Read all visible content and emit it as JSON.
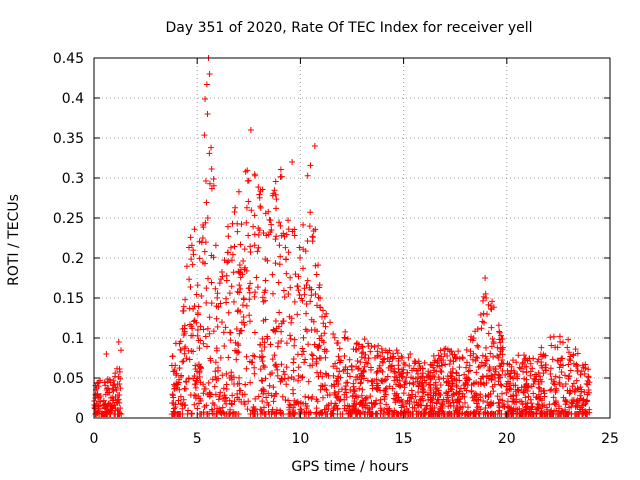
{
  "chart_data": {
    "type": "scatter",
    "title": "Day 351 of 2020, Rate Of TEC Index for receiver yell",
    "xlabel": "GPS time / hours",
    "ylabel": "ROTI / TECUs",
    "xlim": [
      0,
      25
    ],
    "ylim": [
      0,
      0.45
    ],
    "xticks": [
      0,
      5,
      10,
      15,
      20,
      25
    ],
    "yticks": [
      0,
      0.05,
      0.1,
      0.15,
      0.2,
      0.25,
      0.3,
      0.35,
      0.4,
      0.45
    ],
    "xtick_labels": [
      "0",
      "5",
      "10",
      "15",
      "20",
      "25"
    ],
    "ytick_labels": [
      "0",
      "0.05",
      "0.1",
      "0.15",
      "0.2",
      "0.25",
      "0.3",
      "0.35",
      "0.4",
      "0.45"
    ],
    "grid": true,
    "marker": "+",
    "series": [
      {
        "name": "ROTI",
        "color": "#ff0000",
        "envelope": {
          "description": "approximate upper envelope of ROTI points per hour bin (x = hour, y = typical max)",
          "x": [
            0,
            0.5,
            1.0,
            1.3,
            3.8,
            4.2,
            4.6,
            5.0,
            5.5,
            6.0,
            6.5,
            7.0,
            7.5,
            8.0,
            8.5,
            9.0,
            9.5,
            10.0,
            10.5,
            11.0,
            11.5,
            12.0,
            13.0,
            14.0,
            15.0,
            16.0,
            17.0,
            18.0,
            19.0,
            20.0,
            21.0,
            22.0,
            23.0,
            24.0
          ],
          "y": [
            0.05,
            0.05,
            0.06,
            0.09,
            0.08,
            0.12,
            0.23,
            0.26,
            0.45,
            0.2,
            0.25,
            0.28,
            0.36,
            0.3,
            0.26,
            0.32,
            0.25,
            0.22,
            0.34,
            0.15,
            0.12,
            0.11,
            0.1,
            0.09,
            0.085,
            0.07,
            0.09,
            0.08,
            0.175,
            0.08,
            0.08,
            0.105,
            0.1,
            0.07
          ]
        },
        "notable_points": [
          {
            "x": 0.6,
            "y": 0.08
          },
          {
            "x": 1.2,
            "y": 0.095
          },
          {
            "x": 5.55,
            "y": 0.45
          },
          {
            "x": 5.6,
            "y": 0.43
          },
          {
            "x": 5.5,
            "y": 0.38
          },
          {
            "x": 7.6,
            "y": 0.36
          },
          {
            "x": 9.6,
            "y": 0.32
          },
          {
            "x": 10.7,
            "y": 0.34
          },
          {
            "x": 18.95,
            "y": 0.175
          },
          {
            "x": 19.0,
            "y": 0.15
          }
        ]
      }
    ]
  }
}
